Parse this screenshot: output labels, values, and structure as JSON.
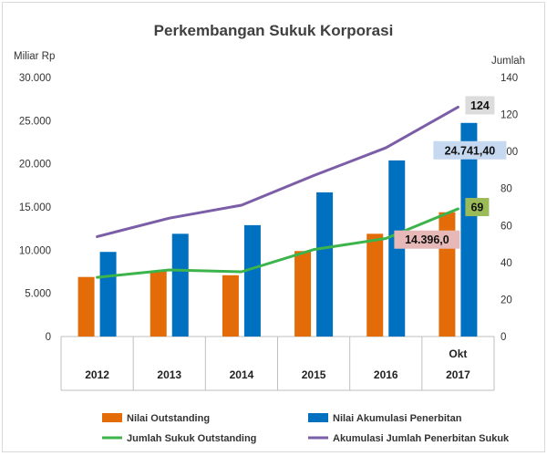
{
  "chart_data": {
    "type": "bar",
    "title": "Perkembangan Sukuk Korporasi",
    "left_axis_label": "Miliar Rp",
    "right_axis_label": "Jumlah",
    "left_ticks": [
      "0",
      "5.000",
      "10.000",
      "15.000",
      "20.000",
      "25.000",
      "30.000"
    ],
    "right_ticks": [
      "0",
      "20",
      "40",
      "60",
      "80",
      "100",
      "120",
      "140"
    ],
    "ylim_left": [
      0,
      30000
    ],
    "ylim_right": [
      0,
      140
    ],
    "categories": [
      "2012",
      "2013",
      "2014",
      "2015",
      "2016",
      "2017"
    ],
    "category_sublabels": [
      "",
      "",
      "",
      "",
      "",
      "Okt"
    ],
    "series": [
      {
        "name": "Nilai Outstanding",
        "kind": "bar",
        "axis": "left",
        "color": "#e36c09",
        "values": [
          6900,
          7600,
          7100,
          9900,
          11900,
          14396
        ]
      },
      {
        "name": "Nilai Akumulasi Penerbitan",
        "kind": "bar",
        "axis": "left",
        "color": "#0070c0",
        "values": [
          9800,
          11900,
          12900,
          16700,
          20400,
          24741.4
        ]
      },
      {
        "name": "Jumlah Sukuk Outstanding",
        "kind": "line",
        "axis": "right",
        "color": "#3cb44b",
        "values": [
          32,
          36,
          35,
          47,
          53,
          69
        ]
      },
      {
        "name": "Akumulasi Jumlah Penerbitan Sukuk",
        "kind": "line",
        "axis": "right",
        "color": "#7b5ea7",
        "values": [
          54,
          64,
          71,
          87,
          102,
          124
        ]
      }
    ],
    "callouts": [
      {
        "text": "124",
        "series": 3,
        "bg": "#dcdcdc"
      },
      {
        "text": "24.741,40",
        "series": 1,
        "bg": "#c6d9f1"
      },
      {
        "text": "69",
        "series": 2,
        "bg": "#9bbb59"
      },
      {
        "text": "14.396,0",
        "series": 0,
        "bg": "#e6b8b7"
      }
    ],
    "legend": [
      {
        "label": "Nilai Outstanding",
        "swatch": "bar",
        "series": 0
      },
      {
        "label": "Nilai Akumulasi Penerbitan",
        "swatch": "bar",
        "series": 1
      },
      {
        "label": "Jumlah Sukuk Outstanding",
        "swatch": "line",
        "series": 2
      },
      {
        "label": "Akumulasi Jumlah Penerbitan Sukuk",
        "swatch": "line",
        "series": 3
      }
    ],
    "legend_position": "bottom",
    "grid": false
  }
}
